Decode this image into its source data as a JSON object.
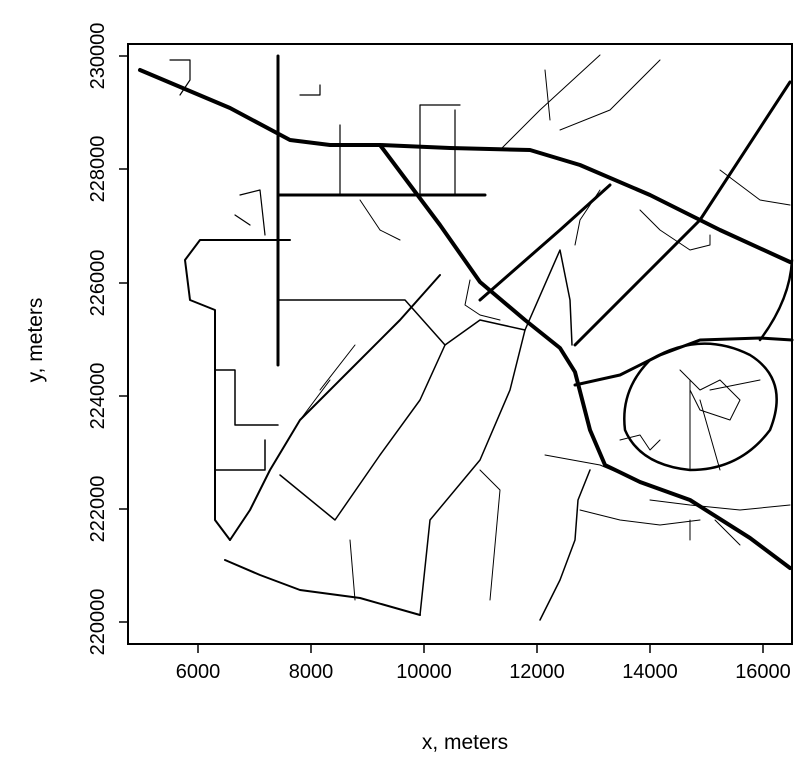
{
  "x_axis": {
    "title": "x, meters",
    "ticks": [
      6000,
      8000,
      10000,
      12000,
      14000,
      16000
    ],
    "range": [
      5000,
      16500
    ]
  },
  "y_axis": {
    "title": "y, meters",
    "ticks": [
      220000,
      222000,
      224000,
      226000,
      228000,
      230000
    ],
    "range": [
      220000,
      230000
    ]
  },
  "map": {
    "feature": "road network lines",
    "line_color": "#000000",
    "background": "#ffffff"
  }
}
